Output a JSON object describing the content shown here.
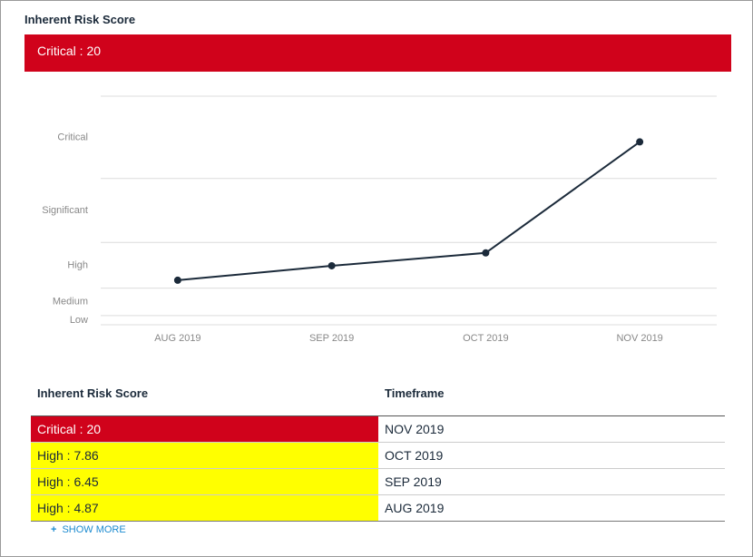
{
  "header": {
    "title": "Inherent Risk Score",
    "banner": "Critical : 20",
    "banner_color": "#d0021b"
  },
  "chart_data": {
    "type": "line",
    "categories": [
      "AUG 2019",
      "SEP 2019",
      "OCT 2019",
      "NOV 2019"
    ],
    "values": [
      4.87,
      6.45,
      7.86,
      20
    ],
    "color": "#1b2a3a",
    "ylim": [
      0,
      25
    ],
    "yticks": [
      {
        "value": 0.5,
        "label": "Low"
      },
      {
        "value": 2.5,
        "label": "Medium"
      },
      {
        "value": 6.5,
        "label": "High"
      },
      {
        "value": 12.5,
        "label": "Significant"
      },
      {
        "value": 20.5,
        "label": "Critical"
      }
    ],
    "gridlines": [
      0,
      1,
      4,
      9,
      16,
      25
    ],
    "grid": true
  },
  "table": {
    "columns": [
      "Inherent Risk Score",
      "Timeframe"
    ],
    "rows": [
      {
        "score": "Critical : 20",
        "timeframe": "NOV 2019",
        "color": "#d0021b",
        "text_color": "#ffffff"
      },
      {
        "score": "High : 7.86",
        "timeframe": "OCT 2019",
        "color": "#ffff00",
        "text_color": "#1b2a3a"
      },
      {
        "score": "High : 6.45",
        "timeframe": "SEP 2019",
        "color": "#ffff00",
        "text_color": "#1b2a3a"
      },
      {
        "score": "High : 4.87",
        "timeframe": "AUG 2019",
        "color": "#ffff00",
        "text_color": "#1b2a3a"
      }
    ],
    "show_more": "SHOW MORE"
  }
}
